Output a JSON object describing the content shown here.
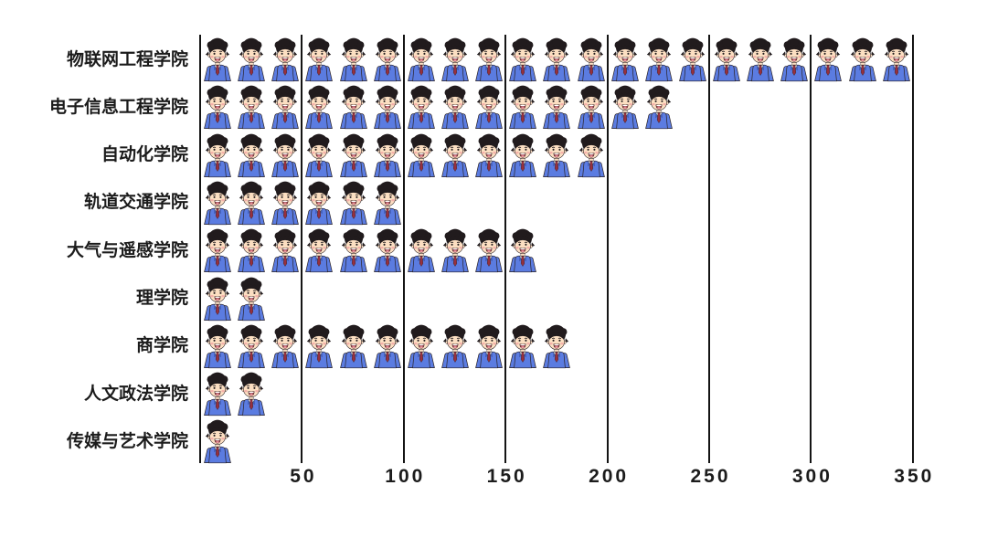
{
  "chart_data": {
    "type": "pictogram_bar",
    "title": "",
    "orientation": "horizontal",
    "icon_semantic": "student-icon",
    "icons_per_gridline_interval": 3,
    "units_per_icon": 16.7,
    "categories": [
      "物联网工程学院",
      "电子信息工程学院",
      "自动化学院",
      "轨道交通学院",
      "大气与遥感学院",
      "理学院",
      "商学院",
      "人文政法学院",
      "传媒与艺术学院"
    ],
    "icon_counts": [
      21,
      14,
      12,
      6,
      10,
      2,
      11,
      2,
      1
    ],
    "values_approx": [
      350,
      233,
      200,
      100,
      167,
      33,
      183,
      33,
      17
    ],
    "x_ticks": [
      "50",
      "100",
      "150",
      "200",
      "250",
      "300",
      "350"
    ],
    "xlim": [
      0,
      350
    ],
    "grid": "vertical-lines-on",
    "legend": "none",
    "colors": {
      "background": "#ffffff",
      "grid_line": "#141414",
      "label_text": "#1b1b1b",
      "tick_text": "#1c1c1c",
      "hair": "#211b1d",
      "skin": "#fcdfc2",
      "cheek": "#f5b0aa",
      "mouth": "#8c2f38",
      "tongue": "#ef9aa0",
      "teeth": "#ffffff",
      "jacket": "#5b7ce1",
      "jacket_dark": "#445fb8",
      "shirt": "#ffffff",
      "tie": "#97303e",
      "outline": "#2a2124"
    }
  }
}
